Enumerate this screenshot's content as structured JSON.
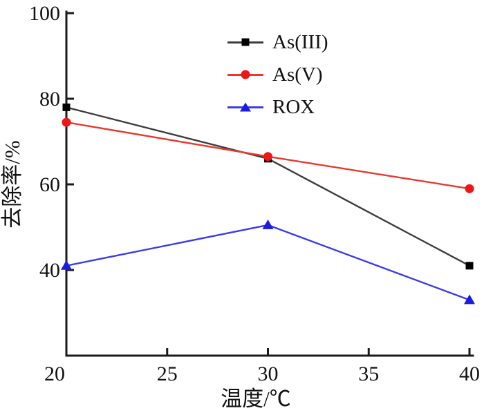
{
  "chart_data": {
    "type": "line",
    "xlabel": "温度/℃",
    "ylabel": "去除率/%",
    "x": [
      20,
      30,
      40
    ],
    "series": [
      {
        "name": "As(III)",
        "marker": "square",
        "color": "#3d3d3d",
        "marker_color": "#000000",
        "values": [
          78,
          66,
          41
        ]
      },
      {
        "name": "As(V)",
        "marker": "circle",
        "color": "#e7392e",
        "marker_color": "#ec1717",
        "values": [
          74.5,
          66.5,
          59
        ]
      },
      {
        "name": "ROX",
        "marker": "triangle",
        "color": "#3b3be7",
        "marker_color": "#1c1cdf",
        "values": [
          41,
          50.5,
          33
        ]
      }
    ],
    "xlim": [
      20,
      40
    ],
    "ylim": [
      20,
      100
    ],
    "x_ticks": [
      20,
      25,
      30,
      35,
      40
    ],
    "y_ticks": [
      40,
      60,
      80,
      100
    ],
    "grid": false,
    "legend_position": "upper center-left inside plot",
    "axis_color": "#1a1a1a",
    "text_color": "#111111",
    "background": "#ffffff"
  }
}
